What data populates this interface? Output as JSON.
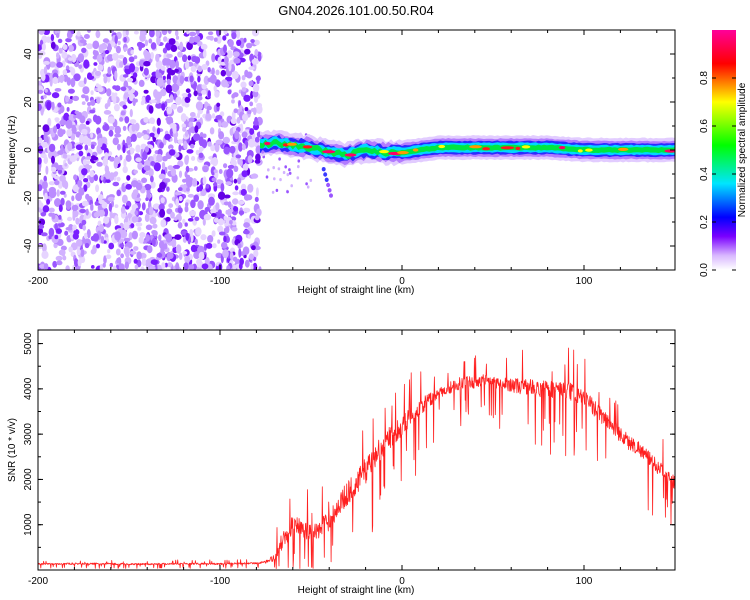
{
  "chart_data": [
    {
      "type": "heatmap",
      "title": "GN04.2026.101.00.50.R04",
      "xlabel": "Height of straight line (km)",
      "ylabel": "Frequency (Hz)",
      "xlim": [
        -200,
        150
      ],
      "ylim": [
        -50,
        50
      ],
      "xticks": [
        -200,
        -100,
        0,
        100
      ],
      "yticks": [
        -40,
        -20,
        0,
        20,
        40
      ],
      "noise_region_x": [
        -200,
        -78
      ],
      "signal_band": {
        "x": [
          -78,
          -70,
          -60,
          -50,
          -40,
          -30,
          -20,
          -10,
          0,
          20,
          40,
          60,
          80,
          100,
          120,
          150
        ],
        "freq_center": [
          2,
          3,
          2,
          1,
          -1,
          -2,
          0,
          -1,
          -1,
          1,
          1,
          1,
          1,
          0,
          0,
          0
        ],
        "band_halfwidth": 5,
        "peak_amplitude": 1.0
      },
      "colorbar": {
        "label": "Normalized spectral amplitude",
        "range": [
          0,
          1
        ],
        "ticks": [
          0,
          0.2,
          0.4,
          0.6,
          0.8
        ],
        "tick_labels": [
          "0.0",
          "0.2",
          "0.4",
          "0.6",
          "0.8"
        ],
        "colormap": [
          "#ffffff",
          "#7a00ff",
          "#0000ff",
          "#00e5ff",
          "#00ff00",
          "#ffff00",
          "#ff0000",
          "#ff00aa"
        ]
      }
    },
    {
      "type": "line",
      "xlabel": "Height of straight line (km)",
      "ylabel": "SNR (10 * v/v)",
      "xlim": [
        -200,
        150
      ],
      "ylim": [
        0,
        5300
      ],
      "xticks": [
        -200,
        -100,
        0,
        100
      ],
      "yticks": [
        1000,
        2000,
        3000,
        4000,
        5000
      ],
      "color": "#ff2020",
      "series": [
        {
          "name": "SNR",
          "x": [
            -200,
            -180,
            -160,
            -140,
            -120,
            -100,
            -80,
            -75,
            -70,
            -65,
            -60,
            -55,
            -50,
            -45,
            -40,
            -35,
            -30,
            -25,
            -20,
            -15,
            -10,
            -5,
            0,
            5,
            10,
            15,
            20,
            25,
            30,
            35,
            40,
            45,
            50,
            55,
            60,
            65,
            70,
            75,
            80,
            85,
            90,
            95,
            100,
            105,
            110,
            115,
            120,
            125,
            130,
            135,
            140,
            145,
            150
          ],
          "y": [
            130,
            140,
            135,
            130,
            140,
            135,
            150,
            170,
            280,
            700,
            1000,
            950,
            800,
            900,
            1100,
            1400,
            1700,
            1900,
            2200,
            2500,
            2800,
            3000,
            3200,
            3400,
            3600,
            3750,
            3900,
            4000,
            4100,
            4150,
            4150,
            4200,
            4150,
            4100,
            4100,
            4050,
            4050,
            4000,
            4000,
            4000,
            3950,
            3900,
            3800,
            3600,
            3400,
            3200,
            3000,
            2800,
            2700,
            2500,
            2300,
            2100,
            1900
          ],
          "noise_amplitude": [
            40,
            40,
            40,
            40,
            40,
            40,
            40,
            60,
            200,
            500,
            500,
            450,
            400,
            450,
            500,
            550,
            600,
            600,
            650,
            650,
            600,
            550,
            500,
            450,
            400,
            350,
            300,
            300,
            300,
            300,
            300,
            300,
            300,
            300,
            350,
            400,
            400,
            400,
            450,
            450,
            450,
            450,
            400,
            400,
            400,
            400,
            400,
            400,
            350,
            350,
            350,
            350,
            350
          ]
        }
      ]
    }
  ]
}
